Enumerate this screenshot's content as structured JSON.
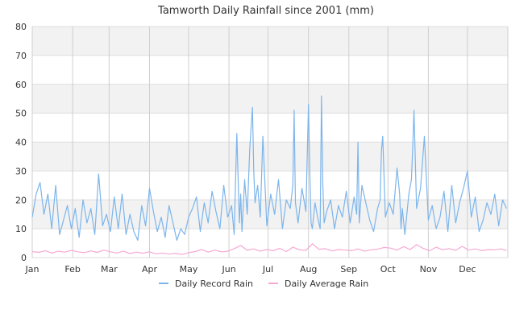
{
  "chart_data": {
    "type": "line",
    "title": "Tamworth Daily Rainfall since 2001 (mm)",
    "xlabel": "",
    "ylabel": "",
    "x_range_days": [
      1,
      366
    ],
    "ylim": [
      0,
      80
    ],
    "y_ticks": [
      0,
      10,
      20,
      30,
      40,
      50,
      60,
      70,
      80
    ],
    "x_ticks": [
      {
        "label": "Jan",
        "day": 1
      },
      {
        "label": "Feb",
        "day": 32
      },
      {
        "label": "Mar",
        "day": 60
      },
      {
        "label": "Apr",
        "day": 91
      },
      {
        "label": "May",
        "day": 121
      },
      {
        "label": "Jun",
        "day": 152
      },
      {
        "label": "Jul",
        "day": 182
      },
      {
        "label": "Aug",
        "day": 213
      },
      {
        "label": "Sep",
        "day": 244
      },
      {
        "label": "Oct",
        "day": 274
      },
      {
        "label": "Nov",
        "day": 305
      },
      {
        "label": "Dec",
        "day": 335
      }
    ],
    "grid": true,
    "legend_position": "bottom",
    "series": [
      {
        "name": "Daily Record Rain",
        "color": "#7cb5ec",
        "x_day": [
          1,
          4,
          7,
          10,
          13,
          16,
          19,
          22,
          25,
          28,
          31,
          34,
          37,
          40,
          43,
          46,
          49,
          52,
          55,
          58,
          61,
          64,
          67,
          70,
          73,
          76,
          79,
          82,
          85,
          88,
          91,
          94,
          97,
          100,
          103,
          106,
          109,
          112,
          115,
          118,
          121,
          124,
          127,
          130,
          133,
          136,
          139,
          142,
          145,
          148,
          151,
          154,
          156,
          158,
          160,
          161,
          162,
          164,
          166,
          168,
          170,
          171,
          172,
          174,
          176,
          178,
          181,
          184,
          187,
          190,
          193,
          196,
          199,
          201,
          202,
          203,
          205,
          208,
          211,
          213,
          214,
          215,
          216,
          218,
          220,
          222,
          223,
          224,
          225,
          227,
          230,
          233,
          236,
          239,
          242,
          245,
          248,
          250,
          251,
          252,
          254,
          257,
          260,
          263,
          266,
          268,
          269,
          270,
          272,
          275,
          278,
          281,
          283,
          284,
          285,
          287,
          290,
          292,
          293,
          294,
          296,
          299,
          302,
          305,
          308,
          311,
          314,
          317,
          320,
          323,
          326,
          329,
          332,
          335,
          338,
          341,
          344,
          347,
          350,
          353,
          356,
          359,
          362,
          365
        ],
        "y": [
          14,
          22,
          26,
          15,
          22,
          10,
          25,
          8,
          13,
          18,
          10,
          17,
          7,
          20,
          12,
          17,
          8,
          29,
          11,
          15,
          9,
          21,
          10,
          22,
          8,
          15,
          9,
          6,
          18,
          11,
          24,
          16,
          9,
          14,
          7,
          18,
          12,
          6,
          10,
          8,
          14,
          17,
          21,
          9,
          19,
          12,
          23,
          16,
          10,
          25,
          14,
          18,
          8,
          43,
          12,
          22,
          9,
          27,
          15,
          38,
          52,
          30,
          19,
          25,
          14,
          42,
          11,
          22,
          15,
          27,
          10,
          20,
          17,
          25,
          51,
          19,
          12,
          24,
          16,
          53,
          30,
          12,
          10,
          19,
          14,
          10,
          56,
          25,
          12,
          16,
          20,
          10,
          18,
          14,
          23,
          12,
          21,
          15,
          40,
          12,
          25,
          19,
          13,
          9,
          17,
          20,
          37,
          42,
          14,
          19,
          15,
          31,
          22,
          10,
          17,
          8,
          22,
          27,
          38,
          51,
          17,
          24,
          42,
          13,
          18,
          10,
          14,
          23,
          9,
          25,
          12,
          19,
          24,
          30,
          14,
          21,
          9,
          13,
          19,
          15,
          22,
          11,
          20,
          17
        ]
      },
      {
        "name": "Daily Average Rain",
        "color": "#f7a9d3",
        "x_day": [
          1,
          6,
          11,
          16,
          21,
          26,
          31,
          36,
          41,
          46,
          51,
          56,
          61,
          66,
          71,
          76,
          81,
          86,
          91,
          96,
          101,
          106,
          111,
          116,
          121,
          126,
          131,
          136,
          141,
          146,
          151,
          156,
          161,
          166,
          171,
          176,
          181,
          186,
          191,
          196,
          201,
          206,
          211,
          216,
          221,
          226,
          231,
          236,
          241,
          246,
          251,
          256,
          261,
          266,
          271,
          276,
          281,
          286,
          291,
          296,
          301,
          306,
          311,
          316,
          321,
          326,
          331,
          336,
          341,
          346,
          351,
          356,
          361,
          365
        ],
        "y": [
          2.1,
          1.8,
          2.4,
          1.6,
          2.2,
          1.9,
          2.5,
          2.0,
          1.7,
          2.3,
          1.8,
          2.6,
          2.0,
          1.6,
          2.2,
          1.4,
          1.9,
          1.5,
          2.0,
          1.3,
          1.6,
          1.2,
          1.5,
          1.1,
          1.7,
          2.1,
          2.8,
          1.9,
          2.6,
          2.0,
          2.2,
          3.1,
          4.2,
          2.5,
          3.0,
          2.2,
          2.8,
          2.4,
          3.2,
          2.1,
          3.6,
          2.7,
          2.5,
          4.8,
          2.9,
          3.1,
          2.3,
          2.8,
          2.6,
          2.4,
          3.0,
          2.2,
          2.7,
          2.9,
          3.5,
          3.3,
          2.6,
          3.8,
          2.8,
          4.5,
          3.2,
          2.4,
          3.6,
          2.7,
          3.1,
          2.5,
          3.9,
          2.6,
          3.0,
          2.4,
          2.8,
          2.7,
          3.0,
          2.4
        ]
      }
    ]
  }
}
